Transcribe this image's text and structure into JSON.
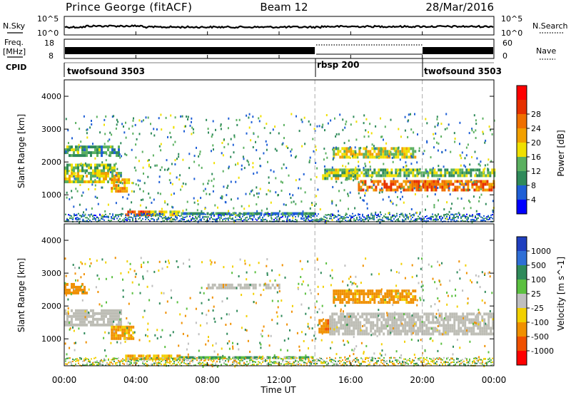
{
  "header": {
    "station": "Prince George (fitACF)",
    "beam": "Beam 12",
    "date": "28/Mar/2016"
  },
  "noise_panel": {
    "left_label": "N.Sky",
    "right_label": "N.Search",
    "tick_top": "10^5",
    "tick_bottom": "10^0"
  },
  "freq_panel": {
    "label_top": "Freq.",
    "label_unit": "[MHz]",
    "tick_top": "18",
    "tick_bottom": "8",
    "right_tick_top": "60",
    "right_tick_bottom": "0",
    "right_label": "Nave"
  },
  "cpid_panel": {
    "label": "CPID",
    "segments": [
      {
        "name": "twofsound 3503",
        "start_hour": 0,
        "end_hour": 14
      },
      {
        "name": "rbsp 200",
        "start_hour": 14,
        "end_hour": 20
      },
      {
        "name": "twofsound 3503",
        "start_hour": 20,
        "end_hour": 24
      }
    ]
  },
  "colors": {
    "power_scale": [
      "#0000ff",
      "#1f5fd6",
      "#2f8a5a",
      "#5bb060",
      "#f0e000",
      "#f2a000",
      "#f07000",
      "#e63000",
      "#ff0000"
    ],
    "velocity_scale": [
      "#1f3fbf",
      "#2f6fd6",
      "#2f8a5a",
      "#5bc040",
      "#bfbfbf",
      "#f2d000",
      "#f09000",
      "#f05000",
      "#ff0000"
    ],
    "ground_scatter": "#bdbdb5"
  },
  "chart_data": [
    {
      "type": "heatmap",
      "title": "Power",
      "ylabel": "Slant Range [km]",
      "xlabel": "Time UT",
      "colorbar_label": "Power [dB]",
      "colorbar_ticks": [
        "4",
        "8",
        "12",
        "16",
        "20",
        "24",
        "28"
      ],
      "x_ticks": [
        "00:00",
        "04:00",
        "08:00",
        "12:00",
        "16:00",
        "20:00",
        "00:00"
      ],
      "y_ticks": [
        "1000",
        "2000",
        "3000",
        "4000"
      ],
      "ylim": [
        180,
        4500
      ],
      "xlim": [
        0,
        24
      ],
      "dashed_lines_hours": [
        14,
        20
      ],
      "bands": [
        {
          "t0": 0.0,
          "t1": 3.2,
          "r0": 1400,
          "r1": 1700,
          "p": 18
        },
        {
          "t0": 0.0,
          "t1": 2.8,
          "r0": 1750,
          "r1": 1950,
          "p": 14
        },
        {
          "t0": 0.0,
          "t1": 3.0,
          "r0": 2200,
          "r1": 2500,
          "p": 12
        },
        {
          "t0": 2.6,
          "t1": 3.6,
          "r0": 1100,
          "r1": 1500,
          "p": 22
        },
        {
          "t0": 3.4,
          "t1": 4.8,
          "r0": 380,
          "r1": 520,
          "p": 28
        },
        {
          "t0": 4.8,
          "t1": 6.4,
          "r0": 400,
          "r1": 520,
          "p": 18
        },
        {
          "t0": 6.4,
          "t1": 14.0,
          "r0": 400,
          "r1": 470,
          "p": 10
        },
        {
          "t0": 14.4,
          "t1": 16.4,
          "r0": 1500,
          "r1": 1800,
          "p": 16
        },
        {
          "t0": 16.4,
          "t1": 24.0,
          "r0": 1150,
          "r1": 1450,
          "p": 26
        },
        {
          "t0": 15.0,
          "t1": 24.0,
          "r0": 1550,
          "r1": 1800,
          "p": 14
        },
        {
          "t0": 15.0,
          "t1": 19.6,
          "r0": 2150,
          "r1": 2450,
          "p": 18
        }
      ]
    },
    {
      "type": "heatmap",
      "title": "Velocity",
      "ylabel": "Slant Range [km]",
      "xlabel": "Time UT",
      "colorbar_label": "Velocity [m s^-1]",
      "colorbar_ticks": [
        "1000",
        "500",
        "100",
        "25",
        "-25",
        "-100",
        "-500",
        "-1000"
      ],
      "x_ticks": [
        "00:00",
        "04:00",
        "08:00",
        "12:00",
        "16:00",
        "20:00",
        "00:00"
      ],
      "y_ticks": [
        "1000",
        "2000",
        "3000",
        "4000"
      ],
      "ylim": [
        180,
        4500
      ],
      "xlim": [
        0,
        24
      ],
      "dashed_lines_hours": [
        14,
        20
      ],
      "bands": [
        {
          "t0": 0.0,
          "t1": 3.2,
          "r0": 1400,
          "r1": 1900,
          "v": 0
        },
        {
          "t0": 0.0,
          "t1": 1.2,
          "r0": 2400,
          "r1": 2700,
          "v": -300
        },
        {
          "t0": 2.6,
          "t1": 3.8,
          "r0": 1000,
          "r1": 1400,
          "v": -150
        },
        {
          "t0": 3.4,
          "t1": 6.4,
          "r0": 400,
          "r1": 520,
          "v": -100
        },
        {
          "t0": 6.4,
          "t1": 14.0,
          "r0": 400,
          "r1": 470,
          "v": 80
        },
        {
          "t0": 14.2,
          "t1": 14.8,
          "r0": 1250,
          "r1": 1600,
          "v": -400
        },
        {
          "t0": 14.8,
          "t1": 24.0,
          "r0": 1150,
          "r1": 1800,
          "v": 0
        },
        {
          "t0": 15.0,
          "t1": 19.6,
          "r0": 2100,
          "r1": 2500,
          "v": -200
        },
        {
          "t0": 8.0,
          "t1": 12.0,
          "r0": 2550,
          "r1": 2680,
          "v": 0
        }
      ]
    }
  ]
}
